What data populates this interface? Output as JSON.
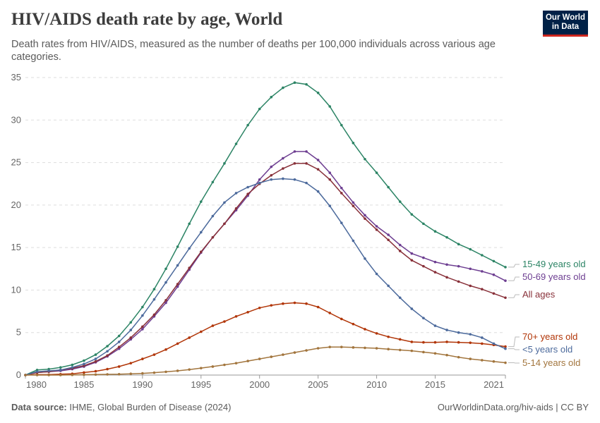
{
  "header": {
    "title": "HIV/AIDS death rate by age, World",
    "subtitle": "Death rates from HIV/AIDS, measured as the number of deaths per 100,000 individuals across various age categories.",
    "logo_text": "Our World in Data"
  },
  "footer": {
    "source_label": "Data source:",
    "source": "IHME, Global Burden of Disease (2024)",
    "url_license": "OurWorldinData.org/hiv-aids | CC BY"
  },
  "chart_data": {
    "type": "line",
    "title": "HIV/AIDS death rate by age, World",
    "xlabel": "",
    "ylabel": "",
    "xlim": [
      1980,
      2021
    ],
    "ylim": [
      0,
      35
    ],
    "grid": "horizontal dashed",
    "legend": "right (end labels)",
    "x_ticks": [
      "1980",
      "1985",
      "1990",
      "1995",
      "2000",
      "2005",
      "2010",
      "2015",
      "2021"
    ],
    "y_ticks": [
      "0",
      "5",
      "10",
      "15",
      "20",
      "25",
      "30",
      "35"
    ],
    "x": [
      1980,
      1981,
      1982,
      1983,
      1984,
      1985,
      1986,
      1987,
      1988,
      1989,
      1990,
      1991,
      1992,
      1993,
      1994,
      1995,
      1996,
      1997,
      1998,
      1999,
      2000,
      2001,
      2002,
      2003,
      2004,
      2005,
      2006,
      2007,
      2008,
      2009,
      2010,
      2011,
      2012,
      2013,
      2014,
      2015,
      2016,
      2017,
      2018,
      2019,
      2020,
      2021
    ],
    "series": [
      {
        "name": "15-49 years old",
        "color": "#2c8465",
        "values": [
          0,
          0.6,
          0.7,
          0.9,
          1.2,
          1.7,
          2.4,
          3.4,
          4.6,
          6.2,
          8.0,
          10.1,
          12.5,
          15.1,
          17.8,
          20.4,
          22.7,
          24.9,
          27.2,
          29.4,
          31.3,
          32.7,
          33.8,
          34.4,
          34.2,
          33.2,
          31.6,
          29.4,
          27.3,
          25.4,
          23.8,
          22.1,
          20.4,
          18.9,
          17.8,
          16.9,
          16.2,
          15.4,
          14.8,
          14.1,
          13.4,
          12.7
        ]
      },
      {
        "name": "50-69 years old",
        "color": "#6d3e91",
        "values": [
          0,
          0.3,
          0.4,
          0.5,
          0.7,
          1.0,
          1.5,
          2.2,
          3.1,
          4.2,
          5.4,
          6.9,
          8.5,
          10.4,
          12.4,
          14.4,
          16.2,
          17.8,
          19.4,
          21.1,
          23.0,
          24.5,
          25.5,
          26.3,
          26.3,
          25.3,
          23.8,
          22.0,
          20.3,
          18.8,
          17.5,
          16.5,
          15.3,
          14.3,
          13.8,
          13.3,
          13.0,
          12.8,
          12.5,
          12.2,
          11.8,
          11.1
        ]
      },
      {
        "name": "All ages",
        "color": "#883039",
        "values": [
          0,
          0.3,
          0.4,
          0.6,
          0.8,
          1.1,
          1.6,
          2.3,
          3.3,
          4.4,
          5.7,
          7.1,
          8.8,
          10.7,
          12.6,
          14.5,
          16.2,
          17.8,
          19.6,
          21.3,
          22.5,
          23.5,
          24.3,
          24.9,
          24.9,
          24.2,
          23.0,
          21.4,
          19.9,
          18.4,
          17.1,
          15.9,
          14.6,
          13.5,
          12.8,
          12.1,
          11.5,
          11.0,
          10.5,
          10.1,
          9.6,
          9.1
        ]
      },
      {
        "name": "70+ years old",
        "color": "#b13507",
        "values": [
          0,
          0.05,
          0.05,
          0.1,
          0.15,
          0.3,
          0.45,
          0.7,
          1.0,
          1.4,
          1.9,
          2.4,
          3.0,
          3.7,
          4.4,
          5.1,
          5.8,
          6.3,
          6.9,
          7.4,
          7.9,
          8.2,
          8.4,
          8.5,
          8.4,
          8.0,
          7.3,
          6.6,
          6.0,
          5.4,
          4.9,
          4.5,
          4.2,
          3.9,
          3.85,
          3.85,
          3.9,
          3.85,
          3.8,
          3.7,
          3.55,
          3.35
        ]
      },
      {
        "name": "<5 years old",
        "color": "#4c6a9c",
        "values": [
          0,
          0.4,
          0.5,
          0.6,
          0.9,
          1.3,
          1.9,
          2.8,
          3.9,
          5.3,
          7.0,
          8.9,
          10.9,
          12.9,
          14.9,
          16.8,
          18.7,
          20.3,
          21.4,
          22.1,
          22.6,
          23.0,
          23.1,
          23.0,
          22.6,
          21.6,
          19.9,
          17.9,
          15.8,
          13.7,
          11.9,
          10.5,
          9.1,
          7.8,
          6.7,
          5.8,
          5.3,
          5.0,
          4.8,
          4.4,
          3.7,
          3.1
        ]
      },
      {
        "name": "5-14 years old",
        "color": "#a2753d",
        "values": [
          0,
          0,
          0,
          0,
          0.02,
          0.04,
          0.06,
          0.08,
          0.1,
          0.15,
          0.2,
          0.28,
          0.38,
          0.5,
          0.65,
          0.82,
          1.0,
          1.2,
          1.4,
          1.65,
          1.9,
          2.15,
          2.4,
          2.65,
          2.9,
          3.15,
          3.3,
          3.3,
          3.25,
          3.2,
          3.15,
          3.05,
          2.95,
          2.85,
          2.7,
          2.55,
          2.35,
          2.1,
          1.9,
          1.75,
          1.6,
          1.45
        ]
      }
    ]
  }
}
